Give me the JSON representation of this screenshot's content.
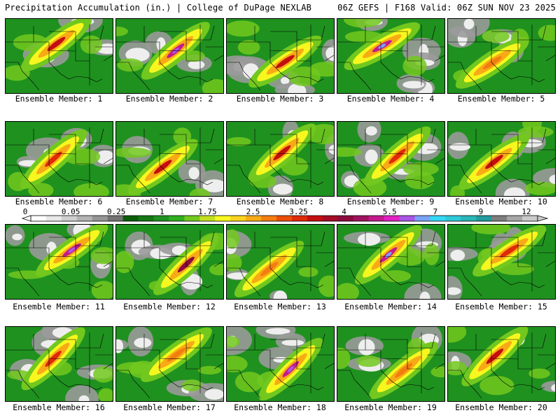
{
  "header": {
    "left": "Precipitation Accumulation (in.) | College of DuPage NEXLAB",
    "right": "06Z GEFS | F168 Valid: 06Z SUN NOV 23 2025"
  },
  "members": [
    {
      "label": "Ensemble Member: 1",
      "max_inches": 3.25
    },
    {
      "label": "Ensemble Member: 2",
      "max_inches": 5.5
    },
    {
      "label": "Ensemble Member: 3",
      "max_inches": 3.25
    },
    {
      "label": "Ensemble Member: 4",
      "max_inches": 7
    },
    {
      "label": "Ensemble Member: 5",
      "max_inches": 1.75
    },
    {
      "label": "Ensemble Member: 6",
      "max_inches": 2.5
    },
    {
      "label": "Ensemble Member: 7",
      "max_inches": 3.25
    },
    {
      "label": "Ensemble Member: 8",
      "max_inches": 3.25
    },
    {
      "label": "Ensemble Member: 9",
      "max_inches": 2.5
    },
    {
      "label": "Ensemble Member: 10",
      "max_inches": 3.25
    },
    {
      "label": "Ensemble Member: 11",
      "max_inches": 5.5
    },
    {
      "label": "Ensemble Member: 12",
      "max_inches": 4
    },
    {
      "label": "Ensemble Member: 13",
      "max_inches": 1.75
    },
    {
      "label": "Ensemble Member: 14",
      "max_inches": 7
    },
    {
      "label": "Ensemble Member: 15",
      "max_inches": 2.5
    },
    {
      "label": "Ensemble Member: 16",
      "max_inches": 2.5
    },
    {
      "label": "Ensemble Member: 17",
      "max_inches": 1.75
    },
    {
      "label": "Ensemble Member: 18",
      "max_inches": 5.5
    },
    {
      "label": "Ensemble Member: 19",
      "max_inches": 1.75
    },
    {
      "label": "Ensemble Member: 20",
      "max_inches": 3.25
    }
  ],
  "colorbar": {
    "tick_labels": [
      "0",
      "0.05",
      "0.25",
      "1",
      "1.75",
      "2.5",
      "3.25",
      "4",
      "5.5",
      "7",
      "9",
      "12"
    ],
    "colors": [
      "#ffffff",
      "#e8e8e8",
      "#cfcfcf",
      "#b3b3b3",
      "#969696",
      "#737373",
      "#0a5d0a",
      "#137713",
      "#1f911f",
      "#2fae1f",
      "#72c81e",
      "#c2df1f",
      "#f7f71f",
      "#fbd21f",
      "#f8aa16",
      "#f27d0f",
      "#ea4f0a",
      "#e02a08",
      "#c30f0f",
      "#a40b24",
      "#8c0b3c",
      "#a0125e",
      "#c21a8c",
      "#e11fc2",
      "#a955e6",
      "#7aa2f6",
      "#35d7f7",
      "#2ec9d9",
      "#2ab5b7",
      "#229b9b",
      "#7e7e7e",
      "#a6a6a6",
      "#cacaca"
    ]
  }
}
